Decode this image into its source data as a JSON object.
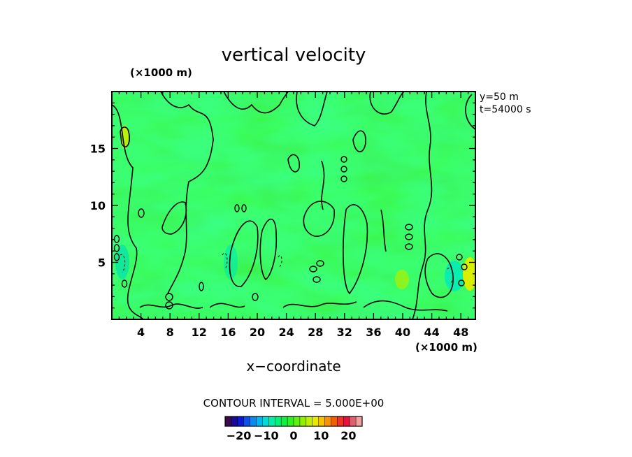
{
  "chart_data": {
    "type": "heatmap",
    "title": "vertical velocity",
    "y_unit_label": "(×1000 m)",
    "x_unit_label": "(×1000 m)",
    "xlabel": "x−coordinate",
    "ylabel": "",
    "annotations": [
      "y=50 m",
      "t=54000 s"
    ],
    "xlim": [
      0,
      50
    ],
    "ylim": [
      0,
      20
    ],
    "x_ticks": [
      4,
      8,
      12,
      16,
      20,
      24,
      28,
      32,
      36,
      40,
      44,
      48
    ],
    "y_ticks": [
      5,
      10,
      15
    ],
    "contour_interval_label": "CONTOUR INTERVAL = 5.000E+00",
    "colorbar": {
      "range": [
        -25,
        25
      ],
      "tick_values": [
        -20,
        -10,
        0,
        10,
        20
      ],
      "tick_labels": [
        "−20",
        "−10",
        "0",
        "10",
        "20"
      ]
    },
    "grid": false,
    "legend_placement": "bottom-center"
  },
  "colors": {
    "field_base": "#33ff33",
    "field_negative": "#00f0a0",
    "field_positive": "#b8f000",
    "contour": "#000000",
    "frame": "#000000"
  }
}
